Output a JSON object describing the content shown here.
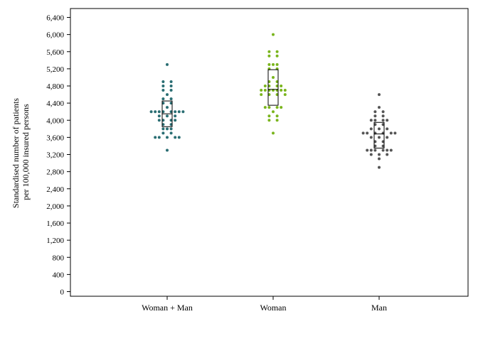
{
  "chart_data": {
    "type": "scatter",
    "subtype": "dot-plot-with-box",
    "ylabel_lines": [
      "Standardised number of patients",
      "per 100,000 insured persons"
    ],
    "ylim": [
      0,
      6400
    ],
    "yticks": [
      0,
      400,
      800,
      1200,
      1600,
      2000,
      2400,
      2800,
      3200,
      3600,
      4000,
      4400,
      4800,
      5200,
      5600,
      6000,
      6400
    ],
    "ytick_labels": [
      "0",
      "400",
      "800",
      "1,200",
      "1,600",
      "2,000",
      "2,400",
      "2,800",
      "3,200",
      "3,600",
      "4,000",
      "4,400",
      "4,800",
      "5,200",
      "5,600",
      "6,000",
      "6,400"
    ],
    "grid": false,
    "categories": [
      "Woman + Man",
      "Woman",
      "Man"
    ],
    "series": [
      {
        "color": "#2a6e73",
        "box": {
          "q1": 3850,
          "median": 4150,
          "q3": 4450
        },
        "points": [
          {
            "y": 5300,
            "d": 0
          },
          {
            "y": 4900,
            "d": -1
          },
          {
            "y": 4900,
            "d": 1
          },
          {
            "y": 4800,
            "d": -1
          },
          {
            "y": 4800,
            "d": 1
          },
          {
            "y": 4700,
            "d": -1
          },
          {
            "y": 4700,
            "d": 1
          },
          {
            "y": 4600,
            "d": 0
          },
          {
            "y": 4500,
            "d": -1
          },
          {
            "y": 4500,
            "d": 1
          },
          {
            "y": 4400,
            "d": -1
          },
          {
            "y": 4400,
            "d": 1
          },
          {
            "y": 4300,
            "d": 0
          },
          {
            "y": 4200,
            "d": -4
          },
          {
            "y": 4200,
            "d": -3
          },
          {
            "y": 4200,
            "d": -2
          },
          {
            "y": 4200,
            "d": -1
          },
          {
            "y": 4200,
            "d": 1
          },
          {
            "y": 4200,
            "d": 2
          },
          {
            "y": 4200,
            "d": 3
          },
          {
            "y": 4200,
            "d": 4
          },
          {
            "y": 4100,
            "d": -2
          },
          {
            "y": 4100,
            "d": 0
          },
          {
            "y": 4100,
            "d": 2
          },
          {
            "y": 4000,
            "d": -2
          },
          {
            "y": 4000,
            "d": -1
          },
          {
            "y": 4000,
            "d": 1
          },
          {
            "y": 4000,
            "d": 2
          },
          {
            "y": 3900,
            "d": -1
          },
          {
            "y": 3900,
            "d": 1
          },
          {
            "y": 3800,
            "d": -1
          },
          {
            "y": 3800,
            "d": 0
          },
          {
            "y": 3800,
            "d": 1
          },
          {
            "y": 3700,
            "d": -1
          },
          {
            "y": 3700,
            "d": 1
          },
          {
            "y": 3600,
            "d": -3
          },
          {
            "y": 3600,
            "d": -2
          },
          {
            "y": 3600,
            "d": 0
          },
          {
            "y": 3600,
            "d": 2
          },
          {
            "y": 3600,
            "d": 3
          },
          {
            "y": 3300,
            "d": 0
          }
        ]
      },
      {
        "color": "#7ab51d",
        "box": {
          "q1": 4350,
          "median": 4720,
          "q3": 5180
        },
        "points": [
          {
            "y": 6000,
            "d": 0
          },
          {
            "y": 5600,
            "d": -1
          },
          {
            "y": 5600,
            "d": 1
          },
          {
            "y": 5500,
            "d": -1
          },
          {
            "y": 5500,
            "d": 1
          },
          {
            "y": 5300,
            "d": -1
          },
          {
            "y": 5300,
            "d": 0
          },
          {
            "y": 5300,
            "d": 1
          },
          {
            "y": 5200,
            "d": -1
          },
          {
            "y": 5200,
            "d": 1
          },
          {
            "y": 5000,
            "d": 0
          },
          {
            "y": 4900,
            "d": -1
          },
          {
            "y": 4900,
            "d": 1
          },
          {
            "y": 4800,
            "d": -2
          },
          {
            "y": 4800,
            "d": -1
          },
          {
            "y": 4800,
            "d": 1
          },
          {
            "y": 4800,
            "d": 2
          },
          {
            "y": 4700,
            "d": -3
          },
          {
            "y": 4700,
            "d": -2
          },
          {
            "y": 4700,
            "d": -1
          },
          {
            "y": 4700,
            "d": 0
          },
          {
            "y": 4700,
            "d": 1
          },
          {
            "y": 4700,
            "d": 2
          },
          {
            "y": 4700,
            "d": 3
          },
          {
            "y": 4600,
            "d": -3
          },
          {
            "y": 4600,
            "d": -1
          },
          {
            "y": 4600,
            "d": 1
          },
          {
            "y": 4600,
            "d": 3
          },
          {
            "y": 4300,
            "d": -2
          },
          {
            "y": 4300,
            "d": -1
          },
          {
            "y": 4300,
            "d": 1
          },
          {
            "y": 4300,
            "d": 2
          },
          {
            "y": 4200,
            "d": 0
          },
          {
            "y": 4100,
            "d": -1
          },
          {
            "y": 4100,
            "d": 1
          },
          {
            "y": 4000,
            "d": -1
          },
          {
            "y": 4000,
            "d": 1
          },
          {
            "y": 3700,
            "d": 0
          }
        ]
      },
      {
        "color": "#555555",
        "box": {
          "q1": 3350,
          "median": 3680,
          "q3": 3950
        },
        "points": [
          {
            "y": 4600,
            "d": 0
          },
          {
            "y": 4300,
            "d": 0
          },
          {
            "y": 4200,
            "d": -1
          },
          {
            "y": 4200,
            "d": 1
          },
          {
            "y": 4100,
            "d": -1
          },
          {
            "y": 4100,
            "d": 1
          },
          {
            "y": 4000,
            "d": -2
          },
          {
            "y": 4000,
            "d": -1
          },
          {
            "y": 4000,
            "d": 1
          },
          {
            "y": 4000,
            "d": 2
          },
          {
            "y": 3900,
            "d": -1
          },
          {
            "y": 3900,
            "d": 1
          },
          {
            "y": 3800,
            "d": -2
          },
          {
            "y": 3800,
            "d": 0
          },
          {
            "y": 3800,
            "d": 2
          },
          {
            "y": 3700,
            "d": -4
          },
          {
            "y": 3700,
            "d": -3
          },
          {
            "y": 3700,
            "d": -1
          },
          {
            "y": 3700,
            "d": 1
          },
          {
            "y": 3700,
            "d": 3
          },
          {
            "y": 3700,
            "d": 4
          },
          {
            "y": 3600,
            "d": -2
          },
          {
            "y": 3600,
            "d": 0
          },
          {
            "y": 3600,
            "d": 2
          },
          {
            "y": 3500,
            "d": -1
          },
          {
            "y": 3500,
            "d": 1
          },
          {
            "y": 3400,
            "d": -1
          },
          {
            "y": 3400,
            "d": 1
          },
          {
            "y": 3300,
            "d": -3
          },
          {
            "y": 3300,
            "d": -2
          },
          {
            "y": 3300,
            "d": -1
          },
          {
            "y": 3300,
            "d": 1
          },
          {
            "y": 3300,
            "d": 2
          },
          {
            "y": 3300,
            "d": 3
          },
          {
            "y": 3200,
            "d": -2
          },
          {
            "y": 3200,
            "d": 0
          },
          {
            "y": 3200,
            "d": 2
          },
          {
            "y": 3100,
            "d": 0
          },
          {
            "y": 2900,
            "d": 0
          }
        ]
      }
    ]
  }
}
